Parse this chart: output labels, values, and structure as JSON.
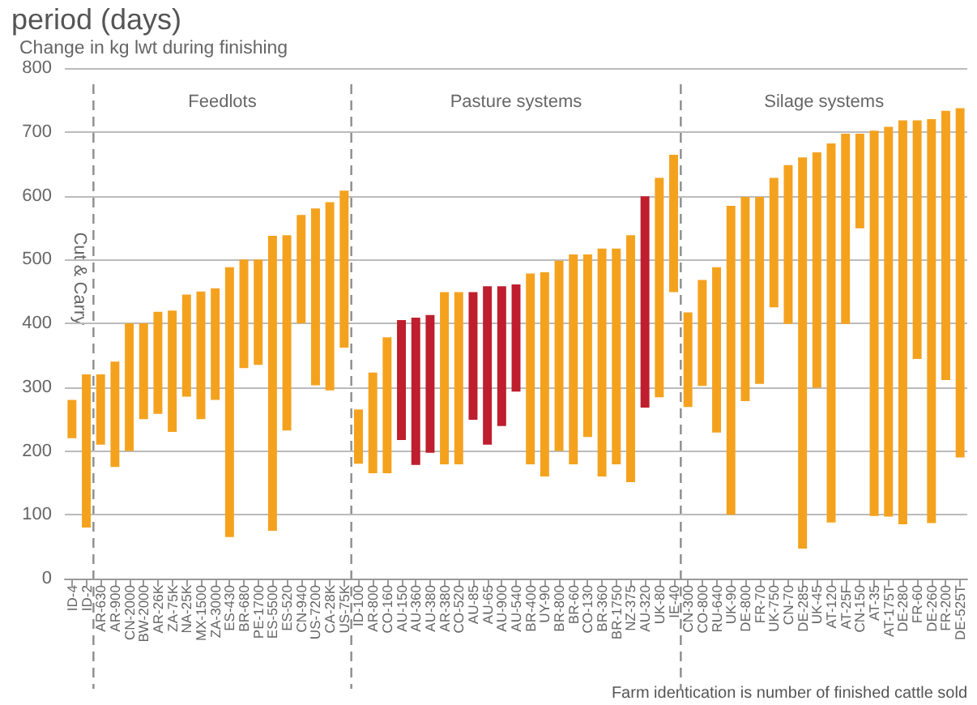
{
  "chart_data": {
    "type": "bar",
    "title": "period (days)",
    "ylabel": "Change in kg lwt during finishing",
    "categories": [
      "ID-4",
      "ID-2",
      "AR-630",
      "AR-900",
      "CN-2000",
      "BW-2000",
      "AR-26K",
      "ZA-75K",
      "NA-25K",
      "MX-1500",
      "ZA-3000",
      "ES-430",
      "BR-680",
      "PE-1700",
      "ES-5500",
      "ES-520",
      "CN-940",
      "US-7200",
      "CA-28K",
      "US-75K",
      "ID-100",
      "AR-800",
      "CO-160",
      "AU-150",
      "AU-360",
      "AU-380",
      "AR-380",
      "CO-520",
      "AU-85",
      "AU-65",
      "AU-900",
      "AU-540",
      "BR-400",
      "UY-90",
      "BR-800",
      "BR-60",
      "CO-130",
      "BR-360",
      "BR-1750",
      "NZ-375",
      "AU-320",
      "UK-80",
      "IE-40",
      "CN-300",
      "CO-800",
      "RU-640",
      "UK-90",
      "DE-800",
      "FR-70",
      "UK-750",
      "CN-70",
      "DE-285",
      "UK-45",
      "AT-120",
      "AT-25F",
      "CN-150",
      "AT-35",
      "AT-175T",
      "DE-280",
      "FR-60",
      "DE-260",
      "FR-200",
      "DE-525T"
    ],
    "base": [
      220,
      80,
      210,
      175,
      200,
      250,
      258,
      230,
      285,
      250,
      280,
      65,
      330,
      335,
      75,
      232,
      400,
      303,
      295,
      362,
      180,
      165,
      165,
      217,
      178,
      197,
      179,
      179,
      249,
      210,
      239,
      293,
      179,
      160,
      200,
      179,
      222,
      160,
      179,
      151,
      268,
      284,
      449,
      269,
      302,
      229,
      100,
      278,
      305,
      425,
      399,
      47,
      299,
      88,
      399,
      549,
      98,
      97,
      85,
      344,
      87,
      311,
      190
    ],
    "values": [
      60,
      240,
      110,
      165,
      200,
      150,
      160,
      190,
      160,
      200,
      175,
      423,
      170,
      165,
      462,
      306,
      170,
      277,
      295,
      246,
      85,
      158,
      213,
      188,
      231,
      216,
      270,
      270,
      200,
      248,
      219,
      168,
      299,
      320,
      298,
      329,
      286,
      357,
      338,
      387,
      331,
      344,
      215,
      148,
      166,
      259,
      484,
      320,
      293,
      203,
      249,
      613,
      369,
      594,
      298,
      148,
      604,
      611,
      633,
      374,
      633,
      422,
      547
    ],
    "colors": [
      "#f4a21e",
      "#f4a21e",
      "#f4a21e",
      "#f4a21e",
      "#f4a21e",
      "#f4a21e",
      "#f4a21e",
      "#f4a21e",
      "#f4a21e",
      "#f4a21e",
      "#f4a21e",
      "#f4a21e",
      "#f4a21e",
      "#f4a21e",
      "#f4a21e",
      "#f4a21e",
      "#f4a21e",
      "#f4a21e",
      "#f4a21e",
      "#f4a21e",
      "#f4a21e",
      "#f4a21e",
      "#f4a21e",
      "#be1e2d",
      "#be1e2d",
      "#be1e2d",
      "#f4a21e",
      "#f4a21e",
      "#be1e2d",
      "#be1e2d",
      "#be1e2d",
      "#be1e2d",
      "#f4a21e",
      "#f4a21e",
      "#f4a21e",
      "#f4a21e",
      "#f4a21e",
      "#f4a21e",
      "#f4a21e",
      "#f4a21e",
      "#be1e2d",
      "#f4a21e",
      "#f4a21e",
      "#f4a21e",
      "#f4a21e",
      "#f4a21e",
      "#f4a21e",
      "#f4a21e",
      "#f4a21e",
      "#f4a21e",
      "#f4a21e",
      "#f4a21e",
      "#f4a21e",
      "#f4a21e",
      "#f4a21e",
      "#f4a21e",
      "#f4a21e",
      "#f4a21e",
      "#f4a21e",
      "#f4a21e",
      "#f4a21e",
      "#f4a21e",
      "#f4a21e"
    ],
    "ylim": [
      0,
      800
    ],
    "yticks": [
      0,
      100,
      200,
      300,
      400,
      500,
      600,
      700,
      800
    ],
    "grid": "y",
    "annotations": [
      "Cut & Carry",
      "Feedlots",
      "Pasture systems",
      "Silage systems",
      "Farm identication is number of finished cattle sold"
    ]
  }
}
